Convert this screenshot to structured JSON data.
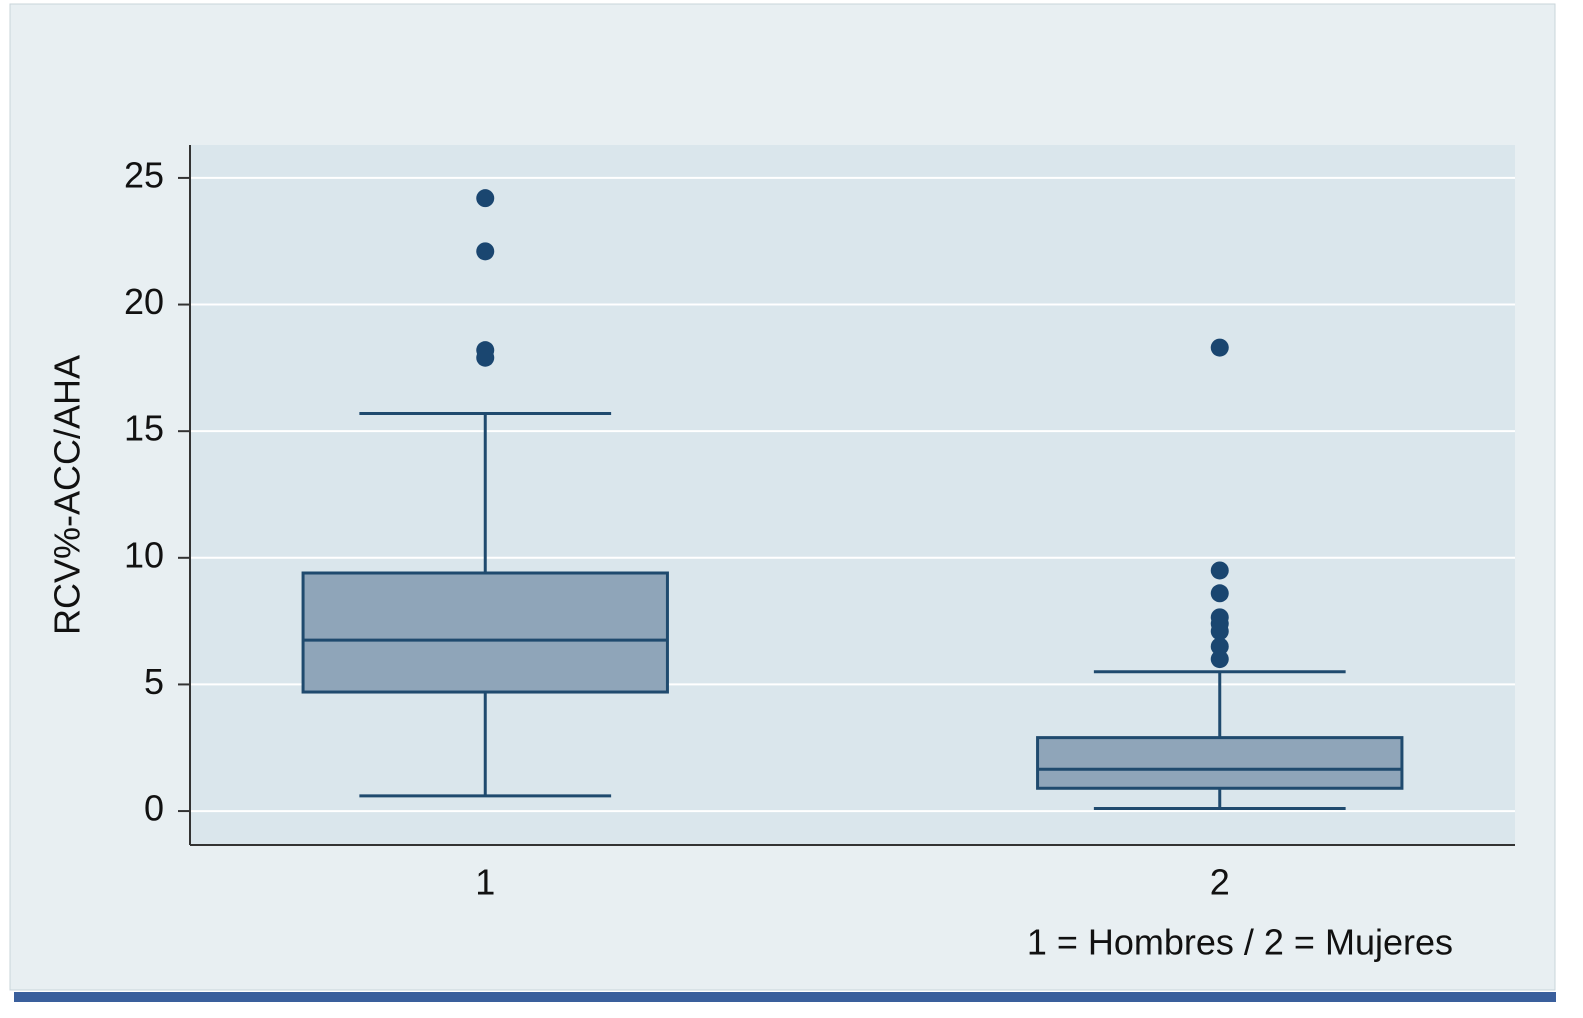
{
  "chart_data": {
    "type": "box",
    "y_label": "RCV%-ACC/AHA",
    "x_label": "1 = Hombres / 2 = Mujeres",
    "categories": [
      "1",
      "2"
    ],
    "boxes": [
      {
        "min": 0.6,
        "q1": 4.7,
        "median": 6.75,
        "q3": 9.4,
        "max": 15.7,
        "outliers": [
          24.2,
          22.1,
          18.2,
          17.9
        ]
      },
      {
        "min": 0.1,
        "q1": 0.9,
        "median": 1.65,
        "q3": 2.9,
        "max": 5.5,
        "outliers": [
          18.3,
          9.5,
          8.6,
          7.65,
          7.4,
          7.1,
          6.5,
          6.0
        ]
      }
    ],
    "box_color": "#8fa5b9",
    "line_color": "#1f4a6e",
    "outlier_color": "#1a4670",
    "ylim": [
      -1.34,
      26.3
    ],
    "yticks": [
      0,
      5,
      10,
      15,
      20,
      25
    ],
    "grid": true
  }
}
